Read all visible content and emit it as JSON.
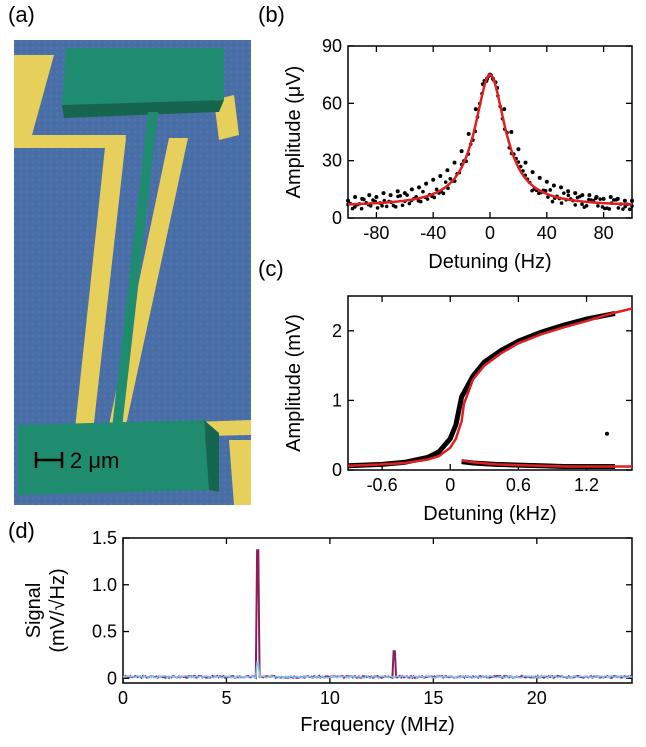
{
  "panels": {
    "a": {
      "label": "(a)",
      "scale_bar_text": "2 μm",
      "colors": {
        "substrate": "#4a6fa8",
        "electrodes": "#e7cf5c",
        "resonator": "#1f8c70"
      }
    },
    "b": {
      "label": "(b)"
    },
    "c": {
      "label": "(c)"
    },
    "d": {
      "label": "(d)"
    }
  },
  "chart_data": [
    {
      "id": "b",
      "type": "scatter",
      "xlabel": "Detuning (Hz)",
      "ylabel": "Amplitude (μV)",
      "xlim": [
        -100,
        100
      ],
      "ylim": [
        0,
        90
      ],
      "xticks": [
        -80,
        -40,
        0,
        40,
        80
      ],
      "yticks": [
        0,
        30,
        60,
        90
      ],
      "series": [
        {
          "kind": "points",
          "color": "#000000",
          "x": [
            -100,
            -95,
            -90,
            -85,
            -80,
            -75,
            -70,
            -65,
            -60,
            -55,
            -50,
            -45,
            -40,
            -35,
            -30,
            -25,
            -20,
            -15,
            -10,
            -5,
            -2,
            0,
            2,
            5,
            10,
            15,
            20,
            25,
            30,
            35,
            40,
            45,
            50,
            55,
            60,
            65,
            70,
            75,
            80,
            85,
            90,
            95,
            100
          ],
          "y": [
            9,
            11,
            10,
            12,
            11,
            13,
            12,
            14,
            13,
            15,
            16,
            18,
            20,
            22,
            25,
            29,
            35,
            44,
            57,
            70,
            73,
            75,
            73,
            68,
            57,
            45,
            36,
            29,
            24,
            21,
            19,
            17,
            16,
            14,
            13,
            12,
            12,
            11,
            10,
            11,
            10,
            9,
            9
          ]
        },
        {
          "kind": "fit",
          "color": "#e02020",
          "function": "lorentzian",
          "params": {
            "baseline": 6.0,
            "peak": 75.0,
            "center": 0,
            "hwhm": 13.0
          }
        }
      ]
    },
    {
      "id": "c",
      "type": "line",
      "xlabel": "Detuning (kHz)",
      "ylabel": "Amplitude (mV)",
      "xlim": [
        -0.9,
        1.6
      ],
      "ylim": [
        0,
        2.5
      ],
      "xticks": [
        -0.6,
        0,
        0.6,
        1.2
      ],
      "yticks": [
        0,
        1,
        2
      ],
      "series": [
        {
          "name_visible": false,
          "color": "#000000",
          "kind": "data",
          "upper_x": [
            -0.9,
            -0.6,
            -0.4,
            -0.2,
            -0.1,
            0,
            0.05,
            0.1,
            0.2,
            0.3,
            0.45,
            0.6,
            0.8,
            1.0,
            1.2,
            1.45
          ],
          "upper_y": [
            0.06,
            0.08,
            0.11,
            0.18,
            0.26,
            0.45,
            0.65,
            1.05,
            1.35,
            1.55,
            1.72,
            1.85,
            1.98,
            2.08,
            2.17,
            2.25
          ],
          "lower_x": [
            0.1,
            0.2,
            0.4,
            0.6,
            0.8,
            1.0,
            1.2,
            1.45
          ],
          "lower_y": [
            0.12,
            0.1,
            0.08,
            0.07,
            0.06,
            0.05,
            0.05,
            0.05
          ],
          "outlier": [
            1.38,
            0.52
          ]
        },
        {
          "color": "#e02020",
          "kind": "fit",
          "upper_x": [
            -0.9,
            -0.6,
            -0.4,
            -0.2,
            -0.1,
            0,
            0.05,
            0.1,
            0.12,
            0.2,
            0.3,
            0.45,
            0.6,
            0.8,
            1.0,
            1.2,
            1.4,
            1.6
          ],
          "upper_y": [
            0.06,
            0.08,
            0.1,
            0.15,
            0.2,
            0.32,
            0.45,
            0.7,
            0.95,
            1.3,
            1.5,
            1.68,
            1.82,
            1.95,
            2.05,
            2.14,
            2.24,
            2.32
          ],
          "lower_x": [
            0.1,
            0.2,
            0.4,
            0.6,
            0.8,
            1.0,
            1.2,
            1.4,
            1.6
          ],
          "lower_y": [
            0.14,
            0.11,
            0.08,
            0.07,
            0.06,
            0.05,
            0.05,
            0.05,
            0.05
          ]
        }
      ]
    },
    {
      "id": "d",
      "type": "line",
      "xlabel": "Frequency (MHz)",
      "ylabel_line1": "Signal",
      "ylabel_line2": "(mV/√Hz)",
      "xlim": [
        0,
        24.6
      ],
      "ylim": [
        -0.05,
        1.5
      ],
      "xticks": [
        0,
        5,
        10,
        15,
        20
      ],
      "yticks": [
        0,
        0.5,
        1.0,
        1.5
      ],
      "series": [
        {
          "color": "#8b1e5b",
          "kind": "spectrum",
          "noise": 0.02,
          "peaks": [
            {
              "x": 6.5,
              "y": 1.37
            },
            {
              "x": 13.1,
              "y": 0.29
            }
          ]
        },
        {
          "color": "#7fc3e8",
          "kind": "spectrum",
          "noise": 0.02,
          "peaks": [
            {
              "x": 6.5,
              "y": 0.17
            }
          ]
        }
      ]
    }
  ]
}
